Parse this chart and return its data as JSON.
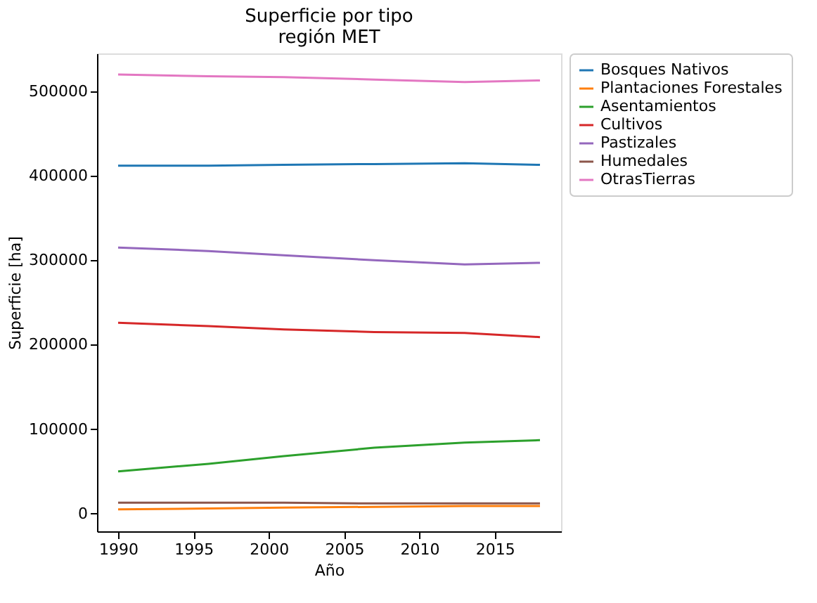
{
  "chart_data": {
    "type": "line",
    "title": [
      "Superficie por tipo",
      "región MET"
    ],
    "xlabel": "Año",
    "ylabel": "Superficie [ha]",
    "x": [
      1990,
      1996,
      2001,
      2007,
      2013,
      2018
    ],
    "xlim": [
      1988.6,
      2019.4
    ],
    "xticks": [
      1990,
      1995,
      2000,
      2005,
      2010,
      2015
    ],
    "ylim": [
      -21000,
      545000
    ],
    "yticks": [
      0,
      100000,
      200000,
      300000,
      400000,
      500000
    ],
    "grid": false,
    "legend": "right",
    "marker": "none",
    "line_style": "solid",
    "series": [
      {
        "name": "Bosques Nativos",
        "color": "#1f77b4",
        "values": [
          412000,
          412000,
          413000,
          414000,
          415000,
          413000
        ]
      },
      {
        "name": "Plantaciones Forestales",
        "color": "#ff7f0e",
        "values": [
          5000,
          6000,
          7000,
          8000,
          9000,
          9000
        ]
      },
      {
        "name": "Asentamientos",
        "color": "#2ca02c",
        "values": [
          50000,
          59000,
          68000,
          78000,
          84000,
          87000
        ]
      },
      {
        "name": "Cultivos",
        "color": "#d62728",
        "values": [
          226000,
          222000,
          218000,
          215000,
          214000,
          209000
        ]
      },
      {
        "name": "Pastizales",
        "color": "#9467bd",
        "values": [
          315000,
          311000,
          306000,
          300000,
          295000,
          297000
        ]
      },
      {
        "name": "Humedales",
        "color": "#8c564b",
        "values": [
          13000,
          13000,
          13000,
          12000,
          12000,
          12000
        ]
      },
      {
        "name": "OtrasTierras",
        "color": "#e377c2",
        "values": [
          520000,
          518000,
          517000,
          514000,
          511000,
          513000
        ]
      }
    ]
  }
}
